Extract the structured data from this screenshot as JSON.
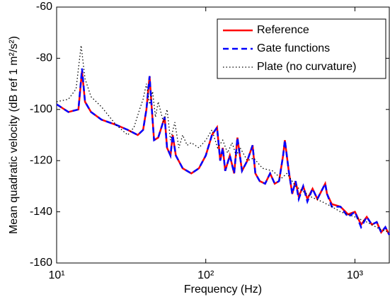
{
  "chart_data": {
    "type": "line",
    "xlabel": "Frequency (Hz)",
    "ylabel": "Mean quadratic velocity (dB ref 1 m²/s²)",
    "xscale": "log",
    "xlim": [
      10,
      1700
    ],
    "ylim": [
      -160,
      -60
    ],
    "xticks": [
      {
        "value": 10,
        "label": "10¹"
      },
      {
        "value": 100,
        "label": "10²"
      },
      {
        "value": 1000,
        "label": "10³"
      }
    ],
    "yticks": [
      -160,
      -140,
      -120,
      -100,
      -80,
      -60
    ],
    "legend": "upper right",
    "series": [
      {
        "name": "Reference",
        "color": "#ff0000",
        "style": "solid",
        "x": [
          10,
          12,
          14,
          14.8,
          15.5,
          17,
          20,
          25,
          30,
          35,
          38,
          40,
          42,
          43.5,
          45,
          48,
          53,
          55,
          58,
          60,
          63,
          70,
          80,
          90,
          100,
          110,
          119,
          125,
          130,
          135,
          145,
          155,
          163,
          175,
          190,
          206,
          215,
          230,
          250,
          270,
          290,
          310,
          330,
          339,
          360,
          380,
          400,
          420,
          450,
          480,
          520,
          560,
          632,
          650,
          700,
          800,
          900,
          1000,
          1100,
          1200,
          1300,
          1400,
          1500,
          1600,
          1700
        ],
        "values": [
          -98,
          -101,
          -100,
          -85,
          -97,
          -101,
          -104,
          -106,
          -108,
          -110,
          -108,
          -100,
          -87,
          -100,
          -112,
          -111,
          -103,
          -115,
          -118,
          -110,
          -118,
          -123,
          -125,
          -123,
          -118,
          -110,
          -107,
          -120,
          -115,
          -124,
          -118,
          -125,
          -111,
          -124,
          -120,
          -114,
          -125,
          -128,
          -129,
          -125,
          -129,
          -128,
          -118,
          -112,
          -124,
          -133,
          -128,
          -134,
          -130,
          -135,
          -131,
          -135,
          -129,
          -133,
          -137,
          -138,
          -141,
          -140,
          -145,
          -142,
          -145,
          -144,
          -148,
          -146,
          -149
        ]
      },
      {
        "name": "Gate functions",
        "color": "#0000ff",
        "style": "dashed",
        "x": [
          10,
          12,
          14,
          14.8,
          15.5,
          17,
          20,
          25,
          30,
          35,
          38,
          40,
          42,
          43.5,
          45,
          48,
          53,
          55,
          58,
          60,
          63,
          70,
          80,
          90,
          100,
          110,
          119,
          125,
          130,
          135,
          145,
          155,
          163,
          175,
          190,
          206,
          215,
          230,
          250,
          270,
          290,
          310,
          330,
          339,
          360,
          380,
          400,
          420,
          450,
          480,
          520,
          560,
          632,
          650,
          700,
          800,
          900,
          1000,
          1100,
          1200,
          1300,
          1400,
          1500,
          1600,
          1700
        ],
        "values": [
          -98,
          -101,
          -100,
          -84,
          -97,
          -101,
          -104,
          -106,
          -108,
          -110,
          -108,
          -100,
          -87,
          -100,
          -112,
          -111,
          -103,
          -115,
          -118,
          -110,
          -118,
          -123,
          -125,
          -123,
          -118,
          -110,
          -107,
          -120,
          -115,
          -124,
          -118,
          -125,
          -111,
          -124,
          -120,
          -114,
          -125,
          -128,
          -129,
          -125,
          -129,
          -128,
          -118,
          -112,
          -124,
          -133,
          -128,
          -135,
          -130,
          -136,
          -131,
          -135,
          -129,
          -133,
          -138,
          -138,
          -142,
          -140,
          -146,
          -142,
          -145,
          -144,
          -148,
          -146,
          -149
        ]
      },
      {
        "name": "Plate (no curvature)",
        "color": "#000000",
        "style": "dotted",
        "x": [
          10,
          12,
          13.5,
          14.6,
          15.5,
          17,
          20,
          25,
          30,
          33,
          36,
          38,
          40,
          42,
          44,
          46,
          48,
          52,
          55,
          58,
          62,
          66,
          70,
          75,
          80,
          90,
          100,
          110,
          120,
          130,
          140,
          150,
          160,
          170,
          190,
          210,
          240,
          280,
          320,
          350,
          400,
          450,
          500,
          600,
          700,
          800,
          1000,
          1200,
          1500,
          1700
        ],
        "values": [
          -97,
          -96,
          -92,
          -75,
          -88,
          -95,
          -99,
          -106,
          -110,
          -107,
          -100,
          -96,
          -90,
          -98,
          -93,
          -103,
          -97,
          -105,
          -100,
          -112,
          -105,
          -115,
          -110,
          -114,
          -113,
          -115,
          -112,
          -108,
          -115,
          -112,
          -117,
          -113,
          -118,
          -115,
          -120,
          -119,
          -123,
          -124,
          -127,
          -125,
          -130,
          -132,
          -134,
          -136,
          -138,
          -140,
          -142,
          -144,
          -147,
          -148
        ]
      }
    ]
  }
}
